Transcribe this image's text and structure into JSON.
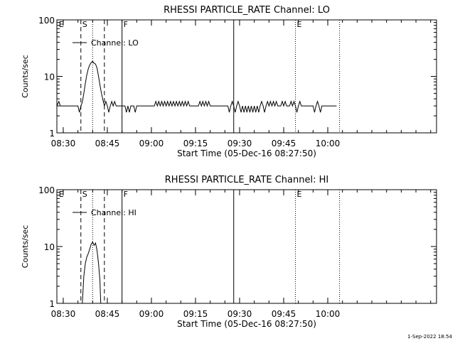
{
  "footer_text": "1-Sep-2022 18:54",
  "chart_data": [
    {
      "type": "line",
      "title": "RHESSI PARTICLE_RATE Channel: LO",
      "xlabel": "Start Time (05-Dec-16 08:27:50)",
      "ylabel": "Counts/sec",
      "x_ticks": [
        "08:30",
        "08:45",
        "09:00",
        "09:15",
        "09:30",
        "09:45",
        "10:00"
      ],
      "y_ticks": [
        "1",
        "10",
        "100"
      ],
      "yscale": "log",
      "xlim": [
        "08:27:50",
        "10:37:00"
      ],
      "ylim": [
        1,
        100
      ],
      "legend": {
        "label": "Channel: LO",
        "placement": "top-left"
      },
      "markers": [
        {
          "label": "E",
          "time": "08:28:00",
          "style": "none"
        },
        {
          "label": "S",
          "time": "08:36:00",
          "style": "dashed"
        },
        {
          "label": "",
          "time": "08:40:00",
          "style": "dotted"
        },
        {
          "label": "",
          "time": "08:44:00",
          "style": "dashed"
        },
        {
          "label": "F",
          "time": "08:50:00",
          "style": "solid"
        },
        {
          "label": "",
          "time": "09:28:00",
          "style": "solid"
        },
        {
          "label": "E",
          "time": "09:49:00",
          "style": "dotted"
        },
        {
          "label": "",
          "time": "10:04:00",
          "style": "dotted"
        }
      ],
      "series": [
        {
          "name": "Channel: LO",
          "points": [
            [
              "08:27:50",
              3.0
            ],
            [
              "08:28:30",
              3.6
            ],
            [
              "08:29:00",
              3.0
            ],
            [
              "08:35:00",
              3.0
            ],
            [
              "08:35:30",
              2.3
            ],
            [
              "08:36:00",
              3.0
            ],
            [
              "08:36:30",
              3.5
            ],
            [
              "08:37:00",
              5.0
            ],
            [
              "08:37:30",
              7.5
            ],
            [
              "08:38:00",
              10.5
            ],
            [
              "08:38:30",
              13.5
            ],
            [
              "08:39:00",
              16.0
            ],
            [
              "08:39:30",
              17.5
            ],
            [
              "08:40:00",
              18.5
            ],
            [
              "08:40:30",
              17.0
            ],
            [
              "08:41:00",
              16.5
            ],
            [
              "08:41:30",
              14.0
            ],
            [
              "08:42:00",
              10.0
            ],
            [
              "08:42:30",
              7.0
            ],
            [
              "08:43:00",
              5.0
            ],
            [
              "08:43:30",
              3.8
            ],
            [
              "08:44:00",
              3.0
            ],
            [
              "08:44:30",
              3.6
            ],
            [
              "08:45:00",
              3.0
            ],
            [
              "08:45:30",
              2.3
            ],
            [
              "08:46:00",
              3.0
            ],
            [
              "08:46:30",
              3.6
            ],
            [
              "08:47:00",
              3.0
            ],
            [
              "08:47:30",
              3.6
            ],
            [
              "08:48:00",
              3.0
            ],
            [
              "08:50:00",
              3.0
            ],
            [
              "08:51:00",
              3.0
            ],
            [
              "08:51:30",
              2.3
            ],
            [
              "08:52:00",
              3.0
            ],
            [
              "08:52:30",
              2.3
            ],
            [
              "08:53:00",
              3.0
            ],
            [
              "08:54:00",
              3.0
            ],
            [
              "08:54:30",
              2.3
            ],
            [
              "08:55:00",
              3.0
            ],
            [
              "09:01:00",
              3.0
            ],
            [
              "09:01:30",
              3.6
            ],
            [
              "09:02:00",
              3.0
            ],
            [
              "09:02:30",
              3.6
            ],
            [
              "09:03:00",
              3.0
            ],
            [
              "09:03:30",
              3.6
            ],
            [
              "09:04:00",
              3.0
            ],
            [
              "09:04:30",
              3.6
            ],
            [
              "09:05:00",
              3.0
            ],
            [
              "09:05:30",
              3.6
            ],
            [
              "09:06:00",
              3.0
            ],
            [
              "09:06:30",
              3.6
            ],
            [
              "09:07:00",
              3.0
            ],
            [
              "09:07:30",
              3.6
            ],
            [
              "09:08:00",
              3.0
            ],
            [
              "09:08:30",
              3.6
            ],
            [
              "09:09:00",
              3.0
            ],
            [
              "09:09:30",
              3.6
            ],
            [
              "09:10:00",
              3.0
            ],
            [
              "09:10:30",
              3.6
            ],
            [
              "09:11:00",
              3.0
            ],
            [
              "09:11:30",
              3.6
            ],
            [
              "09:12:00",
              3.0
            ],
            [
              "09:12:30",
              3.6
            ],
            [
              "09:13:00",
              3.0
            ],
            [
              "09:16:00",
              3.0
            ],
            [
              "09:16:30",
              3.6
            ],
            [
              "09:17:00",
              3.0
            ],
            [
              "09:17:30",
              3.6
            ],
            [
              "09:18:00",
              3.0
            ],
            [
              "09:18:30",
              3.6
            ],
            [
              "09:19:00",
              3.0
            ],
            [
              "09:19:30",
              3.6
            ],
            [
              "09:20:00",
              3.0
            ],
            [
              "09:26:00",
              3.0
            ],
            [
              "09:26:30",
              2.3
            ],
            [
              "09:27:00",
              3.0
            ],
            [
              "09:27:30",
              3.6
            ],
            [
              "09:28:00",
              3.0
            ],
            [
              "09:28:30",
              2.3
            ],
            [
              "09:29:00",
              3.0
            ],
            [
              "09:29:30",
              3.6
            ],
            [
              "09:30:00",
              3.0
            ],
            [
              "09:30:30",
              2.3
            ],
            [
              "09:31:00",
              3.0
            ],
            [
              "09:31:30",
              2.3
            ],
            [
              "09:32:00",
              3.0
            ],
            [
              "09:32:30",
              2.3
            ],
            [
              "09:33:00",
              3.0
            ],
            [
              "09:33:30",
              2.3
            ],
            [
              "09:34:00",
              3.0
            ],
            [
              "09:34:30",
              2.3
            ],
            [
              "09:35:00",
              3.0
            ],
            [
              "09:35:30",
              2.3
            ],
            [
              "09:36:00",
              3.0
            ],
            [
              "09:36:30",
              2.3
            ],
            [
              "09:37:00",
              3.0
            ],
            [
              "09:37:30",
              3.6
            ],
            [
              "09:38:00",
              3.0
            ],
            [
              "09:38:30",
              2.3
            ],
            [
              "09:39:00",
              3.0
            ],
            [
              "09:39:30",
              3.6
            ],
            [
              "09:40:00",
              3.0
            ],
            [
              "09:40:30",
              3.6
            ],
            [
              "09:41:00",
              3.0
            ],
            [
              "09:41:30",
              3.6
            ],
            [
              "09:42:00",
              3.0
            ],
            [
              "09:42:30",
              3.6
            ],
            [
              "09:43:00",
              3.0
            ],
            [
              "09:44:00",
              3.0
            ],
            [
              "09:44:30",
              3.6
            ],
            [
              "09:45:00",
              3.0
            ],
            [
              "09:45:30",
              3.6
            ],
            [
              "09:46:00",
              3.0
            ],
            [
              "09:47:00",
              3.0
            ],
            [
              "09:47:30",
              3.6
            ],
            [
              "09:48:00",
              3.0
            ],
            [
              "09:48:30",
              3.6
            ],
            [
              "09:49:00",
              3.0
            ],
            [
              "09:49:30",
              2.3
            ],
            [
              "09:50:00",
              3.0
            ],
            [
              "09:50:30",
              3.6
            ],
            [
              "09:51:00",
              3.0
            ],
            [
              "09:55:00",
              3.0
            ],
            [
              "09:55:30",
              2.3
            ],
            [
              "09:56:00",
              3.0
            ],
            [
              "09:56:30",
              3.6
            ],
            [
              "09:57:00",
              3.0
            ],
            [
              "09:57:30",
              2.3
            ],
            [
              "09:58:00",
              3.0
            ],
            [
              "10:03:00",
              3.0
            ]
          ]
        }
      ]
    },
    {
      "type": "line",
      "title": "RHESSI PARTICLE_RATE Channel: HI",
      "xlabel": "Start Time (05-Dec-16 08:27:50)",
      "ylabel": "Counts/sec",
      "x_ticks": [
        "08:30",
        "08:45",
        "09:00",
        "09:15",
        "09:30",
        "09:45",
        "10:00"
      ],
      "y_ticks": [
        "1",
        "10",
        "100"
      ],
      "yscale": "log",
      "xlim": [
        "08:27:50",
        "10:37:00"
      ],
      "ylim": [
        1,
        100
      ],
      "legend": {
        "label": "Channel: HI",
        "placement": "top-left"
      },
      "markers": [
        {
          "label": "E",
          "time": "08:28:00",
          "style": "none"
        },
        {
          "label": "S",
          "time": "08:36:00",
          "style": "dashed"
        },
        {
          "label": "",
          "time": "08:40:00",
          "style": "dotted"
        },
        {
          "label": "",
          "time": "08:44:00",
          "style": "dashed"
        },
        {
          "label": "F",
          "time": "08:50:00",
          "style": "solid"
        },
        {
          "label": "",
          "time": "09:28:00",
          "style": "solid"
        },
        {
          "label": "E",
          "time": "09:49:00",
          "style": "dotted"
        },
        {
          "label": "",
          "time": "10:04:00",
          "style": "dotted"
        }
      ],
      "series": [
        {
          "name": "Channel: HI",
          "points": [
            [
              "08:36:30",
              1.0
            ],
            [
              "08:37:00",
              3.0
            ],
            [
              "08:37:30",
              5.0
            ],
            [
              "08:38:00",
              6.5
            ],
            [
              "08:38:30",
              7.5
            ],
            [
              "08:39:00",
              9.0
            ],
            [
              "08:39:30",
              11.0
            ],
            [
              "08:40:00",
              12.0
            ],
            [
              "08:40:30",
              10.5
            ],
            [
              "08:41:00",
              11.5
            ],
            [
              "08:41:30",
              8.5
            ],
            [
              "08:42:00",
              5.0
            ],
            [
              "08:42:30",
              2.5
            ],
            [
              "08:42:45",
              1.0
            ]
          ]
        }
      ]
    }
  ]
}
